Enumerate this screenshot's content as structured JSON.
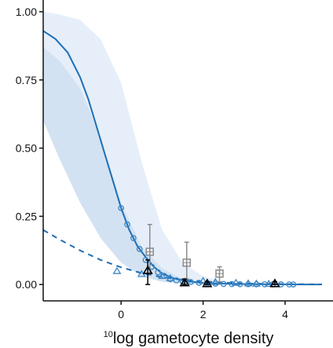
{
  "chart_data": {
    "type": "scatter",
    "title": "",
    "xlabel": {
      "superscript": "10",
      "text": "log gametocyte density"
    },
    "ylabel": "",
    "xlim": [
      -1.9,
      4.9
    ],
    "ylim": [
      -0.06,
      1.02
    ],
    "xticks": [
      0,
      2,
      4
    ],
    "xtick_labels": [
      "0",
      "2",
      "4"
    ],
    "yticks": [
      0.0,
      0.25,
      0.5,
      0.75,
      1.0
    ],
    "ytick_labels": [
      "0.00",
      "0.25",
      "0.50",
      "0.75",
      "1.00"
    ],
    "grid": false,
    "legend": "none",
    "colors": {
      "fit_line": "#1f6fb5",
      "band_outer": "#e6eff9",
      "band_inner": "#d3e2f2",
      "circle_points": "#3b86c4",
      "triangle_points": "#3b86c4",
      "square_points": "#8c8c8c",
      "black_triangles": "#000000"
    },
    "series": [
      {
        "style": "solid-curve",
        "x": [
          -1.9,
          -1.6,
          -1.3,
          -1.0,
          -0.8,
          -0.6,
          -0.4,
          -0.2,
          0.0,
          0.2,
          0.4,
          0.6,
          0.8,
          1.0,
          1.3,
          1.6,
          2.0,
          2.5,
          3.0,
          3.5,
          4.0,
          4.5,
          4.9
        ],
        "y": [
          0.93,
          0.9,
          0.85,
          0.76,
          0.68,
          0.58,
          0.48,
          0.38,
          0.28,
          0.2,
          0.14,
          0.1,
          0.065,
          0.04,
          0.022,
          0.012,
          0.006,
          0.003,
          0.0015,
          0.0008,
          0.0004,
          0.0002,
          0.0001
        ]
      },
      {
        "style": "dashed-curve",
        "x": [
          -1.9,
          -1.5,
          -1.0,
          -0.5,
          0.0,
          0.5,
          1.0,
          1.5,
          2.0,
          2.5,
          3.0,
          4.0,
          4.9
        ],
        "y": [
          0.2,
          0.165,
          0.125,
          0.09,
          0.063,
          0.042,
          0.027,
          0.017,
          0.011,
          0.007,
          0.004,
          0.0015,
          0.0005
        ]
      },
      {
        "style": "circles",
        "x": [
          0.0,
          0.15,
          0.3,
          0.45,
          0.6,
          0.75,
          0.9,
          1.05,
          1.2,
          1.35,
          1.5,
          1.7,
          1.9,
          2.1,
          2.3,
          2.5,
          2.7,
          2.9,
          3.1,
          3.3,
          3.5,
          3.7,
          3.9,
          4.1,
          4.2
        ],
        "y": [
          0.28,
          0.22,
          0.17,
          0.13,
          0.09,
          0.065,
          0.045,
          0.032,
          0.02,
          0.015,
          0.012,
          0.009,
          0.006,
          0.004,
          0.003,
          0.002,
          0.0015,
          0.001,
          0.001,
          0.0008,
          0.0006,
          0.0005,
          0.0004,
          0.0003,
          0.0002
        ]
      },
      {
        "style": "open-triangles",
        "x": [
          -0.1,
          0.5,
          1.0,
          1.2,
          2.0,
          2.3,
          2.8,
          3.1,
          3.3,
          3.6
        ],
        "y": [
          0.048,
          0.037,
          0.03,
          0.022,
          0.012,
          0.008,
          0.005,
          0.003,
          0.002,
          0.001
        ]
      },
      {
        "style": "gray-squares",
        "x": [
          0.7,
          1.6,
          2.4
        ],
        "y": [
          0.12,
          0.08,
          0.04
        ],
        "err_low": [
          0.04,
          0.02,
          0.01
        ],
        "err_high": [
          0.22,
          0.155,
          0.065
        ]
      },
      {
        "style": "black-triangles",
        "x": [
          0.65,
          1.55,
          2.1,
          3.75
        ],
        "y": [
          0.05,
          0.005,
          0.002,
          0.002
        ],
        "err_low": [
          0.0,
          0.0,
          0.0,
          0.0
        ],
        "err_high": [
          0.09,
          0.02,
          0.01,
          0.01
        ]
      }
    ],
    "band_outer": {
      "x": [
        -1.9,
        -1.5,
        -1.0,
        -0.5,
        0.0,
        0.5,
        1.0,
        1.5,
        2.0,
        2.5,
        3.0
      ],
      "upper": [
        1.0,
        0.99,
        0.97,
        0.9,
        0.74,
        0.45,
        0.2,
        0.08,
        0.03,
        0.01,
        0.004
      ],
      "lower": [
        0.8,
        0.62,
        0.4,
        0.22,
        0.1,
        0.04,
        0.015,
        0.006,
        0.002,
        0.001,
        0.0
      ]
    },
    "band_inner": {
      "x": [
        -1.9,
        -1.5,
        -1.0,
        -0.5,
        0.0,
        0.5,
        1.0,
        1.5,
        2.0
      ],
      "upper": [
        0.87,
        0.82,
        0.72,
        0.54,
        0.3,
        0.14,
        0.06,
        0.02,
        0.005
      ],
      "lower": [
        0.6,
        0.46,
        0.3,
        0.17,
        0.08,
        0.03,
        0.01,
        0.003,
        0.001
      ]
    }
  }
}
